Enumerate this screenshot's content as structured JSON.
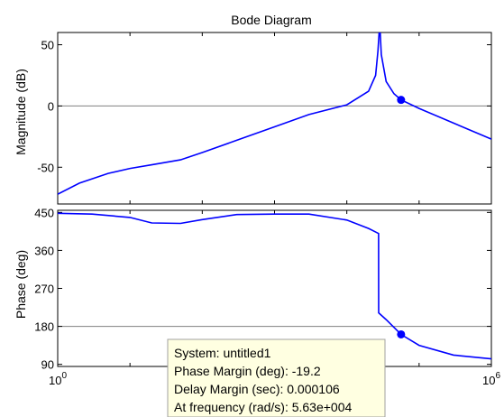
{
  "chart_data": {
    "type": "line",
    "title": "Bode Diagram",
    "x": {
      "scale": "log",
      "range": [
        1,
        1000000
      ],
      "tick_labels": [
        {
          "value": 1,
          "base": "10",
          "exp": "0"
        },
        {
          "value": 1000000,
          "base": "10",
          "exp": "6"
        }
      ]
    },
    "panels": [
      {
        "name": "magnitude",
        "ylabel": "Magnitude (dB)",
        "ylim": [
          -80,
          60
        ],
        "yticks": [
          50,
          0,
          -50
        ],
        "grid": "y=0 line",
        "line_color": "#0000ff",
        "series_points": [
          [
            1,
            -72
          ],
          [
            2,
            -63
          ],
          [
            5,
            -55
          ],
          [
            10,
            -51
          ],
          [
            20,
            -48
          ],
          [
            50,
            -44
          ],
          [
            100,
            -38
          ],
          [
            300,
            -28
          ],
          [
            1000,
            -17
          ],
          [
            3000,
            -7
          ],
          [
            10000,
            1
          ],
          [
            20000,
            12
          ],
          [
            25000,
            25
          ],
          [
            27000,
            45
          ],
          [
            28000,
            60
          ],
          [
            29000,
            60
          ],
          [
            30000,
            42
          ],
          [
            35000,
            20
          ],
          [
            45000,
            10
          ],
          [
            56300,
            5
          ],
          [
            100000,
            -2
          ],
          [
            300000,
            -14
          ],
          [
            1000000,
            -27
          ]
        ],
        "marker": {
          "x": 56300,
          "y": 5
        }
      },
      {
        "name": "phase",
        "ylabel": "Phase (deg)",
        "ylim": [
          85,
          455
        ],
        "yticks": [
          450,
          360,
          270,
          180,
          90
        ],
        "grid": "y=180 line",
        "line_color": "#0000ff",
        "series_points": [
          [
            1,
            448
          ],
          [
            3,
            446
          ],
          [
            10,
            438
          ],
          [
            20,
            425
          ],
          [
            50,
            424
          ],
          [
            100,
            433
          ],
          [
            300,
            445
          ],
          [
            1000,
            446
          ],
          [
            3000,
            446
          ],
          [
            10000,
            432
          ],
          [
            20000,
            412
          ],
          [
            27500,
            400
          ],
          [
            27600,
            212
          ],
          [
            35000,
            196
          ],
          [
            56300,
            161
          ],
          [
            100000,
            135
          ],
          [
            300000,
            112
          ],
          [
            1000000,
            103
          ]
        ],
        "marker": {
          "x": 56300,
          "y": 161
        }
      }
    ],
    "datatip": {
      "lines": [
        "System: untitled1",
        "Phase Margin (deg): -19.2",
        "Delay Margin (sec): 0.000106",
        "At frequency (rad/s): 5.63e+004"
      ],
      "background": "#ffffe1"
    }
  }
}
